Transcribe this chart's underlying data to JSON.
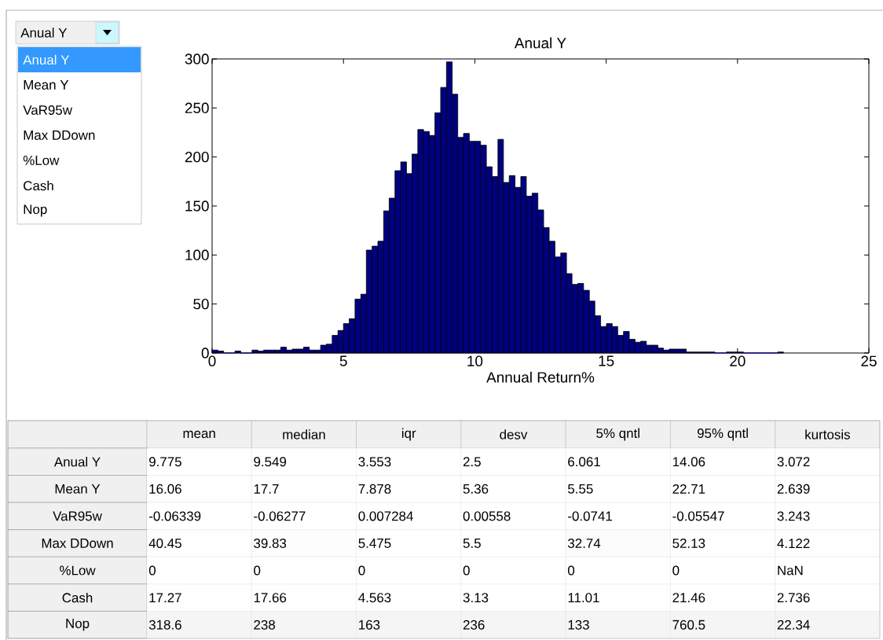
{
  "chart_data": [
    {
      "type": "other",
      "title": "Anual Y",
      "annotations": [
        "Anual Y",
        "Mean Y",
        "VaR95w",
        "Max DDown",
        "%Low",
        "Cash",
        "Nop"
      ]
    },
    {
      "type": "histogram",
      "title": "Anual Y",
      "xlabel": "Annual Return%",
      "color": "#000080",
      "bins": [
        0,
        0.22,
        0.44,
        0.65,
        0.87,
        1.09,
        1.31,
        1.52,
        1.74,
        1.96,
        2.18,
        2.39,
        2.61,
        2.83,
        3.05,
        3.26,
        3.48,
        3.7,
        3.92,
        4.13,
        4.35,
        4.57,
        4.79,
        5.0,
        5.22,
        5.44,
        5.66,
        5.87,
        6.09,
        6.31,
        6.53,
        6.74,
        6.96,
        7.18,
        7.4,
        7.61,
        7.83,
        8.05,
        8.27,
        8.48,
        8.7,
        8.92,
        9.14,
        9.35,
        9.57,
        9.79,
        10.01,
        10.22,
        10.44,
        10.66,
        10.88,
        11.09,
        11.31,
        11.53,
        11.75,
        11.96,
        12.18,
        12.4,
        12.62,
        12.83,
        13.05,
        13.27,
        13.49,
        13.7,
        13.92,
        14.14,
        14.36,
        14.57,
        14.79,
        15.01,
        15.23,
        15.44,
        15.66,
        15.88,
        16.1,
        16.31,
        16.53,
        16.75,
        16.97,
        17.18,
        17.4,
        17.62,
        17.84,
        18.05,
        18.27,
        18.49,
        18.71,
        18.92,
        19.14,
        19.36,
        19.58,
        19.79,
        20.01,
        20.23,
        20.45,
        20.66,
        20.88,
        21.1,
        21.32,
        21.53,
        21.75
      ],
      "values": [
        3,
        2,
        0,
        0,
        2,
        0,
        0,
        3,
        2,
        3,
        3,
        3,
        6,
        3,
        4,
        4,
        6,
        3,
        3,
        8,
        9,
        18,
        23,
        30,
        35,
        55,
        60,
        105,
        109,
        114,
        145,
        158,
        186,
        195,
        183,
        203,
        228,
        226,
        222,
        245,
        271,
        297,
        264,
        220,
        224,
        216,
        216,
        212,
        190,
        180,
        218,
        174,
        181,
        169,
        180,
        160,
        163,
        146,
        128,
        114,
        98,
        102,
        81,
        70,
        71,
        64,
        53,
        38,
        27,
        30,
        27,
        18,
        22,
        14,
        11,
        12,
        8,
        8,
        5,
        3,
        4,
        4,
        4,
        1,
        1,
        1,
        1,
        1,
        0,
        0,
        1,
        1,
        1,
        0,
        0,
        0,
        0,
        0,
        0,
        1
      ],
      "xlim": [
        0,
        25
      ],
      "xticks": [
        0,
        5,
        10,
        15,
        20,
        25
      ],
      "ylim": [
        0,
        300
      ],
      "yticks": [
        0,
        50,
        100,
        150,
        200,
        250,
        300
      ]
    },
    {
      "type": "heatmap",
      "categories": [
        "mean",
        "median",
        "iqr",
        "desv",
        "5% qntl",
        "95% qntl",
        "kurtosis"
      ],
      "y_categories": [
        "Anual Y",
        "Mean Y",
        "VaR95w",
        "Max DDown",
        "%Low",
        "Cash",
        "Nop"
      ],
      "cells": [
        [
          9.775,
          9.549,
          3.553,
          2.5,
          6.061,
          14.06,
          3.072
        ],
        [
          16.06,
          17.7,
          7.878,
          5.36,
          5.55,
          22.71,
          2.639
        ],
        [
          -0.06339,
          -0.06277,
          0.007284,
          0.00558,
          -0.0741,
          -0.05547,
          3.243
        ],
        [
          40.45,
          39.83,
          5.475,
          5.5,
          32.74,
          52.13,
          4.122
        ],
        [
          0,
          0,
          0,
          0,
          0,
          0,
          null
        ],
        [
          17.27,
          17.66,
          4.563,
          3.13,
          11.01,
          21.46,
          2.736
        ],
        [
          318.6,
          238,
          163,
          236,
          133,
          760.5,
          22.34
        ]
      ],
      "cell_labels": [
        [
          "9.775",
          "9.549",
          "3.553",
          "2.5",
          "6.061",
          "14.06",
          "3.072"
        ],
        [
          "16.06",
          "17.7",
          "7.878",
          "5.36",
          "5.55",
          "22.71",
          "2.639"
        ],
        [
          "-0.06339",
          "-0.06277",
          "0.007284",
          "0.00558",
          "-0.0741",
          "-0.05547",
          "3.243"
        ],
        [
          "40.45",
          "39.83",
          "5.475",
          "5.5",
          "32.74",
          "52.13",
          "4.122"
        ],
        [
          "0",
          "0",
          "0",
          "0",
          "0",
          "0",
          "NaN"
        ],
        [
          "17.27",
          "17.66",
          "4.563",
          "3.13",
          "11.01",
          "21.46",
          "2.736"
        ],
        [
          "318.6",
          "238",
          "163",
          "236",
          "133",
          "760.5",
          "22.34"
        ]
      ]
    }
  ]
}
